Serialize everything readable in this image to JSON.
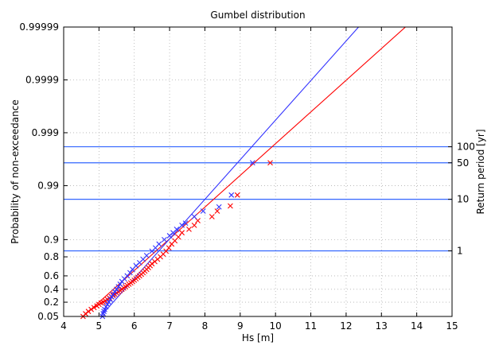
{
  "chart_data": {
    "type": "scatter",
    "title": "Gumbel distribution",
    "xlabel": "Hs [m]",
    "ylabel": "Probability of non-exceedance",
    "y2label": "Return period [yr]",
    "xlim": [
      4,
      15
    ],
    "x_ticks": [
      "4",
      "5",
      "6",
      "7",
      "8",
      "9",
      "10",
      "11",
      "12",
      "13",
      "14",
      "15"
    ],
    "y_ticks": [
      "0.05",
      "0.2",
      "0.4",
      "0.6",
      "0.8",
      "0.9",
      "0.99",
      "0.999",
      "0.9999",
      "0.99999"
    ],
    "y_scale": "gumbel-probability",
    "grid": true,
    "return_period_lines": [
      {
        "label": "1",
        "prob": 0.842
      },
      {
        "label": "10",
        "prob": 0.982
      },
      {
        "label": "50",
        "prob": 0.9963
      },
      {
        "label": "100",
        "prob": 0.99816
      }
    ],
    "return_period_color": "#3366ff",
    "series": [
      {
        "color": "#ff0000",
        "marker": "x",
        "points": [
          [
            4.55,
            0.05
          ],
          [
            4.62,
            0.07
          ],
          [
            4.7,
            0.09
          ],
          [
            4.78,
            0.11
          ],
          [
            4.86,
            0.13
          ],
          [
            4.94,
            0.15
          ],
          [
            5.0,
            0.17
          ],
          [
            5.06,
            0.19
          ],
          [
            5.12,
            0.2
          ],
          [
            5.18,
            0.22
          ],
          [
            5.24,
            0.24
          ],
          [
            5.3,
            0.26
          ],
          [
            5.35,
            0.28
          ],
          [
            5.4,
            0.3
          ],
          [
            5.45,
            0.32
          ],
          [
            5.5,
            0.34
          ],
          [
            5.55,
            0.36
          ],
          [
            5.6,
            0.38
          ],
          [
            5.65,
            0.4
          ],
          [
            5.7,
            0.42
          ],
          [
            5.75,
            0.44
          ],
          [
            5.8,
            0.46
          ],
          [
            5.85,
            0.48
          ],
          [
            5.9,
            0.5
          ],
          [
            5.95,
            0.52
          ],
          [
            6.0,
            0.54
          ],
          [
            6.05,
            0.56
          ],
          [
            6.1,
            0.58
          ],
          [
            6.15,
            0.6
          ],
          [
            6.2,
            0.62
          ],
          [
            6.25,
            0.64
          ],
          [
            6.3,
            0.66
          ],
          [
            6.35,
            0.68
          ],
          [
            6.4,
            0.7
          ],
          [
            6.45,
            0.72
          ],
          [
            6.5,
            0.74
          ],
          [
            6.58,
            0.76
          ],
          [
            6.66,
            0.78
          ],
          [
            6.74,
            0.8
          ],
          [
            6.82,
            0.82
          ],
          [
            6.9,
            0.84
          ],
          [
            6.98,
            0.86
          ],
          [
            7.06,
            0.88
          ],
          [
            7.15,
            0.895
          ],
          [
            7.25,
            0.91
          ],
          [
            7.35,
            0.925
          ],
          [
            7.55,
            0.935
          ],
          [
            7.7,
            0.945
          ],
          [
            7.8,
            0.955
          ],
          [
            8.2,
            0.962
          ],
          [
            8.35,
            0.97
          ],
          [
            8.72,
            0.976
          ],
          [
            8.92,
            0.985
          ],
          [
            9.85,
            0.9963
          ]
        ],
        "fit_line": [
          [
            4.5,
            0.04
          ],
          [
            14.55,
            0.999997
          ]
        ]
      },
      {
        "color": "#3333ff",
        "marker": "x",
        "points": [
          [
            5.1,
            0.05
          ],
          [
            5.12,
            0.07
          ],
          [
            5.14,
            0.09
          ],
          [
            5.16,
            0.11
          ],
          [
            5.2,
            0.14
          ],
          [
            5.24,
            0.17
          ],
          [
            5.28,
            0.2
          ],
          [
            5.32,
            0.24
          ],
          [
            5.36,
            0.28
          ],
          [
            5.4,
            0.32
          ],
          [
            5.45,
            0.36
          ],
          [
            5.5,
            0.4
          ],
          [
            5.55,
            0.44
          ],
          [
            5.6,
            0.48
          ],
          [
            5.65,
            0.52
          ],
          [
            5.72,
            0.56
          ],
          [
            5.8,
            0.6
          ],
          [
            5.88,
            0.64
          ],
          [
            5.95,
            0.68
          ],
          [
            6.05,
            0.72
          ],
          [
            6.15,
            0.75
          ],
          [
            6.25,
            0.78
          ],
          [
            6.35,
            0.81
          ],
          [
            6.5,
            0.84
          ],
          [
            6.6,
            0.86
          ],
          [
            6.7,
            0.88
          ],
          [
            6.85,
            0.9
          ],
          [
            7.0,
            0.915
          ],
          [
            7.1,
            0.925
          ],
          [
            7.2,
            0.935
          ],
          [
            7.35,
            0.945
          ],
          [
            7.45,
            0.95
          ],
          [
            7.7,
            0.962
          ],
          [
            7.95,
            0.97
          ],
          [
            8.4,
            0.975
          ],
          [
            8.75,
            0.985
          ],
          [
            9.35,
            0.9963
          ]
        ],
        "fit_line": [
          [
            5.0,
            0.04
          ],
          [
            13.05,
            0.999997
          ]
        ]
      }
    ]
  }
}
